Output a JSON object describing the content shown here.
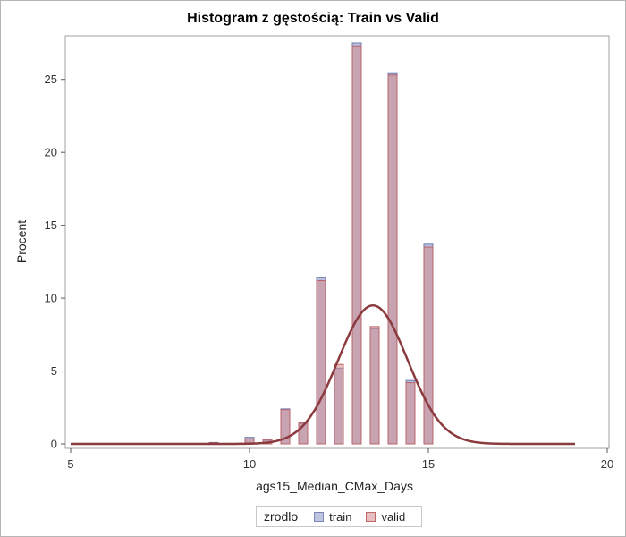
{
  "chart_data": {
    "type": "bar",
    "title": "Histogram z gęstością: Train vs Valid",
    "xlabel": "ags15_Median_CMax_Days",
    "ylabel": "Procent",
    "xlim": [
      5,
      20
    ],
    "ylim": [
      0,
      27.5
    ],
    "x_ticks": [
      5,
      10,
      15,
      20
    ],
    "y_ticks": [
      0,
      5,
      10,
      15,
      20,
      25
    ],
    "bin_width": 0.5,
    "bar_relative_width": 0.5,
    "x": [
      9,
      10,
      10.5,
      11,
      11.5,
      12,
      12.5,
      13,
      13.5,
      14,
      14.5,
      15
    ],
    "series": [
      {
        "name": "train",
        "color": "#8a96c8",
        "values": [
          0.1,
          0.45,
          0.25,
          2.4,
          1.4,
          11.4,
          5.2,
          27.5,
          7.9,
          25.4,
          4.35,
          13.7
        ]
      },
      {
        "name": "valid",
        "color": "#d68a8e",
        "values": [
          0.08,
          0.35,
          0.3,
          2.35,
          1.45,
          11.2,
          5.45,
          27.3,
          8.05,
          25.3,
          4.2,
          13.5
        ]
      }
    ],
    "density": {
      "type": "normal",
      "mean": 13.45,
      "sd": 0.97,
      "peak": 9.5,
      "color": "#8b3a3e",
      "x_range": [
        5,
        19.1
      ]
    },
    "legend": {
      "title": "zrodlo",
      "position": "bottom"
    },
    "grid": false
  }
}
